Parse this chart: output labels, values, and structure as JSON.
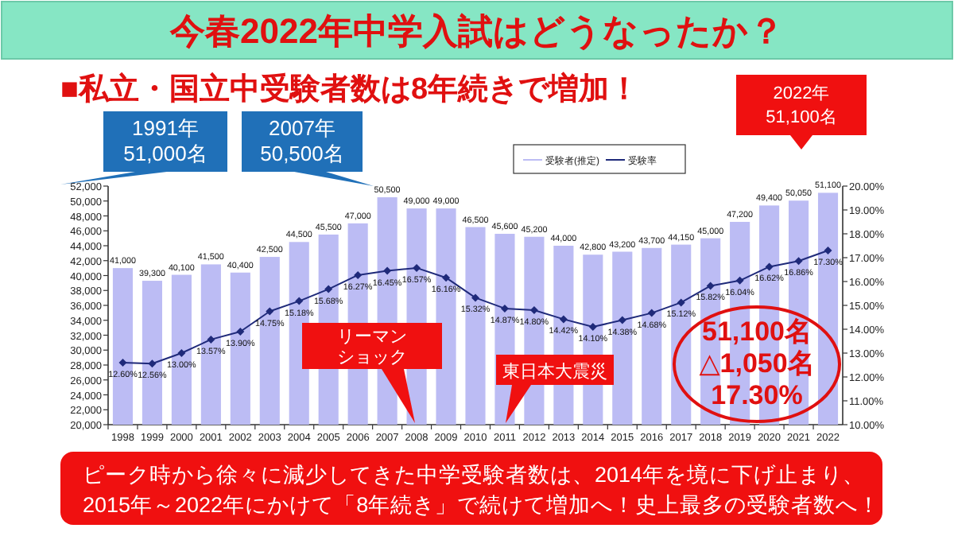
{
  "chart_data": {
    "type": "bar",
    "title": "今春2022年中学入試はどうなったか？",
    "subtitle": "■私立・国立中受験者数は8年続きで増加！",
    "categories": [
      "1998",
      "1999",
      "2000",
      "2001",
      "2002",
      "2003",
      "2004",
      "2005",
      "2006",
      "2007",
      "2008",
      "2009",
      "2010",
      "2011",
      "2012",
      "2013",
      "2014",
      "2015",
      "2016",
      "2017",
      "2018",
      "2019",
      "2020",
      "2021",
      "2022"
    ],
    "series": [
      {
        "name": "受験者(推定)",
        "color": "#bcbcf4",
        "values": [
          41000,
          39300,
          40100,
          41500,
          40400,
          42500,
          44500,
          45500,
          47000,
          50500,
          49000,
          49000,
          46500,
          45600,
          45200,
          44000,
          42800,
          43200,
          43700,
          44150,
          45000,
          47200,
          49400,
          50050,
          51100
        ],
        "value_labels": [
          "41,000",
          "39,300",
          "40,100",
          "41,500",
          "40,400",
          "42,500",
          "44,500",
          "45,500",
          "47,000",
          "50,500",
          "49,000",
          "49,000",
          "46,500",
          "45,600",
          "45,200",
          "44,000",
          "42,800",
          "43,200",
          "43,700",
          "44,150",
          "45,000",
          "47,200",
          "49,400",
          "50,050",
          "51,100"
        ]
      },
      {
        "name": "受験率",
        "type": "line",
        "axis": "y2",
        "color": "#1f2a7a",
        "marker": "diamond",
        "values": [
          12.6,
          12.56,
          13.0,
          13.57,
          13.9,
          14.75,
          15.18,
          15.68,
          16.27,
          16.45,
          16.57,
          16.16,
          15.32,
          14.87,
          14.8,
          14.42,
          14.1,
          14.38,
          14.68,
          15.12,
          15.82,
          16.04,
          16.62,
          16.86,
          17.3
        ],
        "value_labels": [
          "12.60%",
          "12.56%",
          "13.00%",
          "13.57%",
          "13.90%",
          "14.75%",
          "15.18%",
          "15.68%",
          "16.27%",
          "16.45%",
          "16.57%",
          "16.16%",
          "15.32%",
          "14.87%",
          "14.80%",
          "14.42%",
          "14.10%",
          "14.38%",
          "14.68%",
          "15.12%",
          "15.82%",
          "16.04%",
          "16.62%",
          "16.86%",
          "17.30%"
        ]
      }
    ],
    "ylim": [
      20000,
      52000
    ],
    "yticks": [
      {
        "value": 20000,
        "label": "20,000"
      },
      {
        "value": 22000,
        "label": "22,000"
      },
      {
        "value": 24000,
        "label": "24,000"
      },
      {
        "value": 26000,
        "label": "26,000"
      },
      {
        "value": 28000,
        "label": "28,000"
      },
      {
        "value": 30000,
        "label": "30,000"
      },
      {
        "value": 32000,
        "label": "32,000"
      },
      {
        "value": 34000,
        "label": "34,000"
      },
      {
        "value": 36000,
        "label": "36,000"
      },
      {
        "value": 38000,
        "label": "38,000"
      },
      {
        "value": 40000,
        "label": "40,000"
      },
      {
        "value": 42000,
        "label": "42,000"
      },
      {
        "value": 44000,
        "label": "44,000"
      },
      {
        "value": 46000,
        "label": "46,000"
      },
      {
        "value": 48000,
        "label": "48,000"
      },
      {
        "value": 50000,
        "label": "50,000"
      },
      {
        "value": 52000,
        "label": "52,000"
      }
    ],
    "y2lim": [
      10,
      20
    ],
    "y2ticks": [
      {
        "value": 10,
        "label": "10.00%"
      },
      {
        "value": 11,
        "label": "11.00%"
      },
      {
        "value": 12,
        "label": "12.00%"
      },
      {
        "value": 13,
        "label": "13.00%"
      },
      {
        "value": 14,
        "label": "14.00%"
      },
      {
        "value": 15,
        "label": "15.00%"
      },
      {
        "value": 16,
        "label": "16.00%"
      },
      {
        "value": 17,
        "label": "17.00%"
      },
      {
        "value": 18,
        "label": "18.00%"
      },
      {
        "value": 19,
        "label": "19.00%"
      },
      {
        "value": 20,
        "label": "20.00%"
      }
    ],
    "legend": "top",
    "annotations": [
      "1991年\n51,000名",
      "2007年\n50,500名",
      "2022年\n51,100名",
      "リーマンショック",
      "東日本大震災",
      "51,100名",
      "△1,050名",
      "17.30%",
      "ピーク時から徐々に減少してきた中学受験者数は、2014年を境に下げ止まり、\n2015年～2022年にかけて「8年続き」で続けて増加へ！史上最多の受験者数へ！"
    ]
  }
}
